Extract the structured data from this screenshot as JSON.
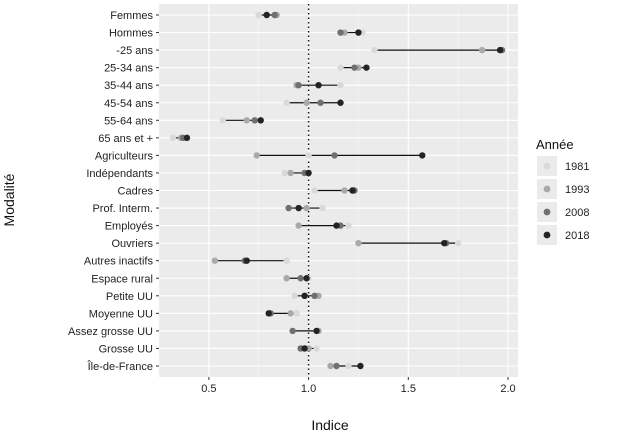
{
  "chart_data": {
    "type": "dumbbell",
    "title": "",
    "xlabel": "Indice",
    "ylabel": "Modalité",
    "xlim": [
      0.25,
      2.05
    ],
    "x_ticks": [
      "0.5",
      "1.0",
      "1.5",
      "2.0"
    ],
    "x_tick_values": [
      0.5,
      1.0,
      1.5,
      2.0
    ],
    "reference_line": 1.0,
    "grid": true,
    "legend_position": "right",
    "legend_title": "Année",
    "series": [
      {
        "name": "1981",
        "color": "#d9d9d9"
      },
      {
        "name": "1993",
        "color": "#a9a9a9"
      },
      {
        "name": "2008",
        "color": "#707070"
      },
      {
        "name": "2018",
        "color": "#232323"
      }
    ],
    "categories": [
      "Femmes",
      "Hommes",
      "-25 ans",
      "25-34 ans",
      "35-44 ans",
      "45-54 ans",
      "55-64 ans",
      "65 ans et +",
      "Agriculteurs",
      "Indépendants",
      "Cadres",
      "Prof. Interm.",
      "Employés",
      "Ouvriers",
      "Autres inactifs",
      "Espace rural",
      "Petite UU",
      "Moyenne UU",
      "Assez grosse UU",
      "Grosse UU",
      "Île-de-France"
    ],
    "values": [
      [
        0.75,
        0.84,
        0.83,
        0.79
      ],
      [
        1.27,
        1.18,
        1.16,
        1.25
      ],
      [
        1.33,
        1.87,
        1.97,
        1.96
      ],
      [
        1.16,
        1.25,
        1.23,
        1.29
      ],
      [
        1.16,
        0.94,
        0.95,
        1.05
      ],
      [
        0.89,
        0.99,
        1.06,
        1.16
      ],
      [
        0.57,
        0.69,
        0.73,
        0.76
      ],
      [
        0.32,
        0.36,
        0.37,
        0.39
      ],
      [
        1.0,
        0.74,
        1.13,
        1.57
      ],
      [
        0.88,
        0.91,
        0.98,
        1.0
      ],
      [
        1.03,
        1.18,
        1.23,
        1.22
      ],
      [
        1.07,
        0.99,
        0.9,
        0.95
      ],
      [
        1.2,
        0.95,
        1.16,
        1.14
      ],
      [
        1.75,
        1.25,
        1.69,
        1.68
      ],
      [
        0.89,
        0.53,
        0.68,
        0.69
      ],
      [
        1.0,
        0.89,
        0.96,
        0.99
      ],
      [
        0.93,
        1.05,
        1.03,
        0.98
      ],
      [
        0.94,
        0.91,
        0.81,
        0.8
      ],
      [
        1.04,
        1.05,
        0.92,
        1.04
      ],
      [
        1.04,
        1.0,
        0.96,
        0.98
      ],
      [
        1.2,
        1.11,
        1.14,
        1.26
      ]
    ]
  }
}
